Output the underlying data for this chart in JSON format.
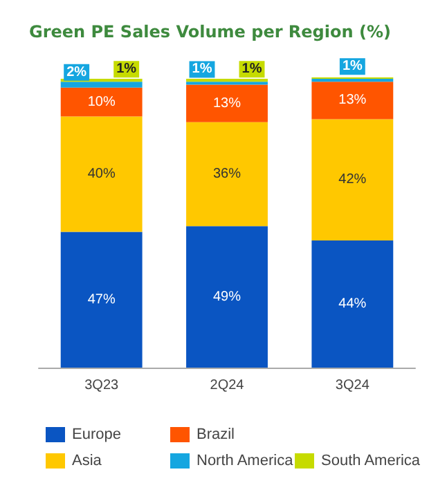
{
  "chart_data": {
    "type": "bar",
    "title": "Green PE Sales Volume per Region (%)",
    "categories": [
      "3Q23",
      "2Q24",
      "3Q24"
    ],
    "stacked": true,
    "legend": "bottom",
    "series": [
      {
        "name": "Europe",
        "color": "#0a55c2",
        "values": [
          47,
          49,
          44
        ],
        "value_labels": [
          "47%",
          "49%",
          "44%"
        ]
      },
      {
        "name": "Asia",
        "color": "#ffc800",
        "values": [
          40,
          36,
          42
        ],
        "value_labels": [
          "40%",
          "36%",
          "42%"
        ]
      },
      {
        "name": "Brazil",
        "color": "#ff5500",
        "values": [
          10,
          13,
          13
        ],
        "value_labels": [
          "10%",
          "13%",
          "13%"
        ]
      },
      {
        "name": "North America",
        "color": "#15a6e0",
        "values": [
          2,
          1,
          1
        ],
        "value_labels": [
          "2%",
          "1%",
          "1%"
        ]
      },
      {
        "name": "South America",
        "color": "#c6db00",
        "values": [
          1,
          1,
          0.5
        ],
        "value_labels": [
          "1%",
          "1%",
          null
        ]
      }
    ]
  }
}
